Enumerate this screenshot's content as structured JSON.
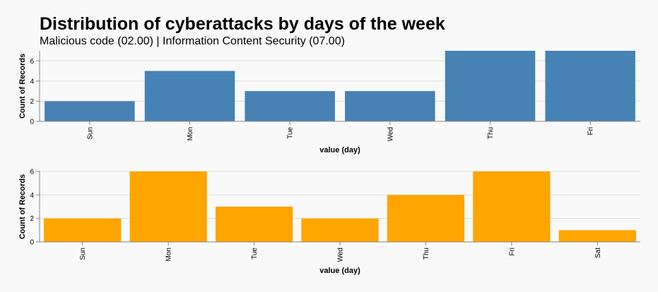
{
  "title": "Distribution of cyberattacks by days of the week",
  "subtitle": "Malicious code (02.00) | Information Content Security (07.00)",
  "chart_data": [
    {
      "type": "bar",
      "xlabel": "value (day)",
      "ylabel": "Count of Records",
      "categories": [
        "Sun",
        "Mon",
        "Tue",
        "Wed",
        "Thu",
        "Fri"
      ],
      "values": [
        2,
        5,
        3,
        3,
        7,
        7
      ],
      "ylim": [
        0,
        7
      ],
      "yticks": [
        0,
        2,
        4,
        6
      ],
      "grid": true,
      "color": "#4682b4"
    },
    {
      "type": "bar",
      "xlabel": "value (day)",
      "ylabel": "Count of Records",
      "categories": [
        "Sun",
        "Mon",
        "Tue",
        "Wed",
        "Thu",
        "Fri",
        "Sat"
      ],
      "values": [
        2,
        6,
        3,
        2,
        4,
        6,
        1
      ],
      "ylim": [
        0,
        6
      ],
      "yticks": [
        0,
        2,
        4,
        6
      ],
      "grid": true,
      "color": "#ffa500"
    }
  ]
}
